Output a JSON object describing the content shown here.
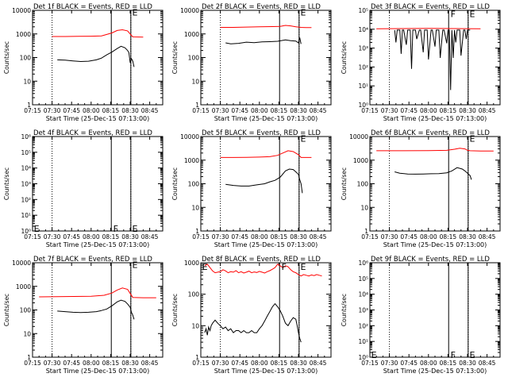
{
  "colors": {
    "events": "#000000",
    "lld": "#ff0000",
    "axes": "#000000",
    "background": "#ffffff"
  },
  "x_tick_labels": [
    "07:15",
    "07:30",
    "07:45",
    "08:00",
    "08:15",
    "08:30",
    "08:45"
  ],
  "x_label": "Start Time (25-Dec-15 07:13:00)",
  "y_label": "Counts/sec",
  "chart_data": [
    {
      "type": "line",
      "title": "Det 1f BLACK = Events, RED = LLD",
      "x_range_min": [
        435,
        535
      ],
      "y_scale": "log",
      "ylim": [
        1,
        10000
      ],
      "y_tick_labels": [
        "1",
        "10",
        "100",
        "1000",
        "10000"
      ],
      "vlines_dotted_min": [
        450,
        510.5
      ],
      "vlines_solid_min": [
        495.5,
        510.5
      ],
      "markers": [
        {
          "text": "E",
          "x_min": 511.5,
          "y": 9000
        }
      ],
      "series": [
        {
          "role": "lld",
          "x_min": [
            450,
            460,
            470,
            480,
            488,
            492,
            496,
            500,
            504,
            508,
            510,
            512,
            516,
            520
          ],
          "values": [
            780,
            780,
            790,
            800,
            830,
            950,
            1100,
            1400,
            1500,
            1350,
            1000,
            750,
            740,
            730
          ]
        },
        {
          "role": "events",
          "x_min": [
            454,
            460,
            466,
            472,
            478,
            484,
            488,
            492,
            496,
            500,
            503,
            506,
            508,
            509,
            510,
            511,
            512,
            513
          ],
          "values": [
            80,
            78,
            72,
            68,
            70,
            80,
            95,
            130,
            170,
            240,
            300,
            260,
            200,
            160,
            60,
            90,
            70,
            40
          ]
        }
      ]
    },
    {
      "type": "line",
      "title": "Det 2f BLACK = Events, RED = LLD",
      "x_range_min": [
        435,
        535
      ],
      "y_scale": "log",
      "ylim": [
        1,
        10000
      ],
      "y_tick_labels": [
        "1",
        "10",
        "100",
        "1000",
        "10000"
      ],
      "vlines_dotted_min": [
        450,
        510.5
      ],
      "vlines_solid_min": [
        495.5,
        510.5
      ],
      "markers": [
        {
          "text": "E",
          "x_min": 511.5,
          "y": 9000
        }
      ],
      "series": [
        {
          "role": "lld",
          "x_min": [
            450,
            460,
            470,
            480,
            490,
            496,
            500,
            504,
            508,
            512,
            516,
            520
          ],
          "values": [
            1900,
            1900,
            1950,
            2000,
            2050,
            2100,
            2300,
            2200,
            2000,
            1900,
            1850,
            1850
          ]
        },
        {
          "role": "events",
          "x_min": [
            454,
            458,
            464,
            470,
            476,
            482,
            488,
            494,
            500,
            504,
            508,
            510,
            511,
            512
          ],
          "values": [
            420,
            380,
            400,
            450,
            430,
            460,
            470,
            490,
            560,
            520,
            500,
            420,
            700,
            380
          ]
        }
      ]
    },
    {
      "type": "line",
      "title": "Det 3f BLACK = Events, RED = LLD",
      "x_range_min": [
        435,
        535
      ],
      "y_scale": "log",
      "ylim": [
        1,
        100000
      ],
      "y_tick_labels": [
        "10⁰",
        "10¹",
        "10²",
        "10³",
        "10⁴",
        "10⁵"
      ],
      "vlines_dotted_min": [
        450,
        510.5
      ],
      "vlines_solid_min": [
        495.5,
        510.5
      ],
      "markers": [
        {
          "text": "F",
          "x_min": 497,
          "y": 70000
        },
        {
          "text": "E",
          "x_min": 511.5,
          "y": 70000
        }
      ],
      "series": [
        {
          "role": "lld",
          "x_min": [
            440,
            460,
            480,
            500,
            520
          ],
          "values": [
            10500,
            10800,
            11000,
            10800,
            10600
          ]
        },
        {
          "role": "events",
          "x_min": [
            454,
            455,
            456,
            458,
            459,
            460,
            461,
            463,
            464,
            466,
            467,
            468,
            470,
            471,
            473,
            474,
            476,
            477,
            479,
            480,
            482,
            483,
            485,
            486,
            488,
            489,
            491,
            492,
            494,
            495,
            496,
            497,
            498,
            499,
            500,
            501,
            502,
            504,
            505,
            507,
            508,
            509,
            510,
            511,
            512
          ],
          "values": [
            9000,
            2000,
            9000,
            9000,
            500,
            9000,
            9000,
            1500,
            9000,
            9000,
            80,
            9000,
            9000,
            3000,
            9000,
            9000,
            600,
            9000,
            9000,
            250,
            9000,
            9000,
            1200,
            9000,
            9000,
            300,
            9000,
            9000,
            1800,
            9000,
            9000,
            6,
            9000,
            300,
            9000,
            2000,
            9000,
            9000,
            400,
            9000,
            9000,
            3000,
            9000,
            9000,
            9000
          ]
        }
      ]
    },
    {
      "type": "line",
      "title": "Det 4f BLACK = Events, RED = LLD",
      "x_range_min": [
        435,
        535
      ],
      "y_scale": "log",
      "ylim": [
        1,
        1000000
      ],
      "y_tick_labels": [
        "10⁰",
        "10¹",
        "10²",
        "10³",
        "10⁴",
        "10⁵",
        "10⁶"
      ],
      "vlines_dotted_min": [
        450,
        510.5
      ],
      "vlines_solid_min": [
        495.5,
        510.5
      ],
      "markers": [
        {
          "text": "E",
          "x_min": 436,
          "y": 1.6
        },
        {
          "text": "F",
          "x_min": 497,
          "y": 1.6
        },
        {
          "text": "E",
          "x_min": 511.5,
          "y": 1.6
        }
      ],
      "series": []
    },
    {
      "type": "line",
      "title": "Det 5f BLACK = Events, RED = LLD",
      "x_range_min": [
        435,
        535
      ],
      "y_scale": "log",
      "ylim": [
        1,
        10000
      ],
      "y_tick_labels": [
        "1",
        "10",
        "100",
        "1000",
        "10000"
      ],
      "vlines_dotted_min": [
        450,
        510.5
      ],
      "vlines_solid_min": [
        495.5,
        510.5
      ],
      "markers": [
        {
          "text": "E",
          "x_min": 511.5,
          "y": 9000
        }
      ],
      "series": [
        {
          "role": "lld",
          "x_min": [
            450,
            460,
            470,
            480,
            488,
            494,
            498,
            502,
            506,
            510,
            512,
            516,
            520
          ],
          "values": [
            1300,
            1300,
            1320,
            1350,
            1400,
            1600,
            2000,
            2500,
            2300,
            1700,
            1300,
            1300,
            1300
          ]
        },
        {
          "role": "events",
          "x_min": [
            454,
            460,
            466,
            472,
            478,
            484,
            488,
            492,
            496,
            500,
            503,
            506,
            508,
            510,
            511,
            512,
            513
          ],
          "values": [
            95,
            85,
            80,
            80,
            90,
            100,
            120,
            140,
            190,
            350,
            420,
            400,
            320,
            250,
            150,
            100,
            40
          ]
        }
      ]
    },
    {
      "type": "line",
      "title": "Det 6f BLACK = Events, RED = LLD",
      "x_range_min": [
        435,
        535
      ],
      "y_scale": "log",
      "ylim": [
        1,
        10000
      ],
      "y_tick_labels": [
        "1",
        "10",
        "100",
        "1000",
        "10000"
      ],
      "vlines_dotted_min": [
        450,
        510.5
      ],
      "vlines_solid_min": [
        495.5,
        510.5
      ],
      "markers": [
        {
          "text": "E",
          "x_min": 511.5,
          "y": 9000
        }
      ],
      "series": [
        {
          "role": "lld",
          "x_min": [
            440,
            460,
            480,
            494,
            500,
            504,
            508,
            510,
            512,
            520,
            530
          ],
          "values": [
            2500,
            2500,
            2550,
            2600,
            2900,
            3200,
            3000,
            2600,
            2500,
            2450,
            2450
          ]
        },
        {
          "role": "events",
          "x_min": [
            454,
            458,
            464,
            470,
            476,
            482,
            488,
            494,
            498,
            502,
            506,
            508,
            510,
            512,
            513
          ],
          "values": [
            320,
            280,
            260,
            255,
            260,
            265,
            270,
            290,
            350,
            480,
            420,
            350,
            280,
            220,
            150
          ]
        }
      ]
    },
    {
      "type": "line",
      "title": "Det 7f BLACK = Events, RED = LLD",
      "x_range_min": [
        435,
        535
      ],
      "y_scale": "log",
      "ylim": [
        1,
        10000
      ],
      "y_tick_labels": [
        "1",
        "10",
        "100",
        "1000",
        "10000"
      ],
      "vlines_dotted_min": [
        450,
        510.5
      ],
      "vlines_solid_min": [
        495.5,
        510.5
      ],
      "markers": [
        {
          "text": "E",
          "x_min": 511.5,
          "y": 9000
        }
      ],
      "series": [
        {
          "role": "lld",
          "x_min": [
            440,
            460,
            480,
            490,
            496,
            500,
            504,
            508,
            510,
            512,
            520,
            530
          ],
          "values": [
            360,
            370,
            380,
            420,
            520,
            700,
            850,
            750,
            500,
            340,
            330,
            330
          ]
        },
        {
          "role": "events",
          "x_min": [
            454,
            460,
            466,
            472,
            478,
            484,
            488,
            492,
            496,
            500,
            503,
            506,
            508,
            510,
            511,
            512,
            513
          ],
          "values": [
            90,
            85,
            80,
            78,
            80,
            85,
            95,
            110,
            150,
            220,
            260,
            230,
            180,
            130,
            80,
            60,
            40
          ]
        }
      ]
    },
    {
      "type": "line",
      "title": "Det 8f BLACK = Events, RED = LLD",
      "x_range_min": [
        435,
        535
      ],
      "y_scale": "log",
      "ylim": [
        1,
        1000
      ],
      "y_tick_labels": [
        "1",
        "10",
        "100",
        "1000"
      ],
      "vlines_dotted_min": [
        450,
        510.5
      ],
      "vlines_solid_min": [
        495.5,
        510.5
      ],
      "markers": [
        {
          "text": "E",
          "x_min": 436,
          "y": 800
        },
        {
          "text": "F",
          "x_min": 497,
          "y": 800
        },
        {
          "text": "E",
          "x_min": 511.5,
          "y": 800
        }
      ],
      "series": [
        {
          "role": "lld",
          "x_min": [
            438,
            440,
            442,
            444,
            446,
            448,
            450,
            452,
            454,
            456,
            458,
            460,
            462,
            464,
            466,
            468,
            470,
            472,
            474,
            476,
            478,
            480,
            482,
            484,
            486,
            488,
            490,
            492,
            494,
            496,
            498,
            500,
            502,
            504,
            506,
            508,
            510,
            512,
            514,
            516,
            518,
            520,
            522,
            524,
            526,
            528
          ],
          "values": [
            800,
            900,
            700,
            550,
            480,
            500,
            520,
            600,
            550,
            480,
            520,
            500,
            560,
            480,
            520,
            470,
            500,
            540,
            480,
            510,
            490,
            530,
            500,
            470,
            520,
            560,
            620,
            700,
            900,
            800,
            700,
            800,
            750,
            600,
            520,
            480,
            420,
            380,
            420,
            400,
            380,
            410,
            390,
            420,
            400,
            380
          ]
        },
        {
          "role": "events",
          "x_min": [
            438,
            439,
            440,
            441,
            442,
            443,
            444,
            446,
            448,
            450,
            452,
            454,
            456,
            458,
            460,
            462,
            464,
            466,
            468,
            470,
            472,
            474,
            476,
            478,
            480,
            482,
            484,
            486,
            488,
            490,
            492,
            494,
            496,
            498,
            500,
            502,
            504,
            506,
            508,
            509,
            510,
            511,
            512
          ],
          "values": [
            6,
            8,
            5,
            9,
            7,
            10,
            12,
            15,
            12,
            10,
            8,
            9,
            7,
            8,
            6,
            7,
            7,
            6,
            7,
            6,
            6,
            7,
            6,
            6,
            8,
            10,
            14,
            20,
            28,
            40,
            50,
            40,
            30,
            20,
            12,
            10,
            14,
            18,
            16,
            10,
            6,
            4,
            3
          ]
        }
      ]
    },
    {
      "type": "line",
      "title": "Det 9f BLACK = Events, RED = LLD",
      "x_range_min": [
        435,
        535
      ],
      "y_scale": "log",
      "ylim": [
        1,
        1000000
      ],
      "y_tick_labels": [
        "10⁰",
        "10¹",
        "10²",
        "10³",
        "10⁴",
        "10⁵",
        "10⁶"
      ],
      "vlines_dotted_min": [
        450,
        510.5
      ],
      "vlines_solid_min": [
        495.5,
        510.5
      ],
      "markers": [
        {
          "text": "E",
          "x_min": 436,
          "y": 1.6
        },
        {
          "text": "F",
          "x_min": 497,
          "y": 1.6
        },
        {
          "text": "E",
          "x_min": 511.5,
          "y": 1.6
        }
      ],
      "series": []
    }
  ]
}
